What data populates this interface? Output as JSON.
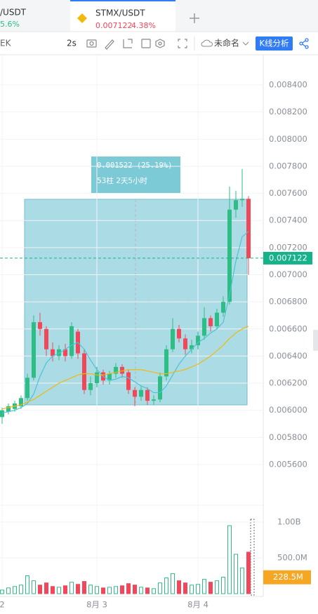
{
  "tabs": [
    {
      "pair": "/USDT",
      "change": "5.6%"
    },
    {
      "pair": "STMX/USDT",
      "change": "4.38%"
    }
  ],
  "toolbar": {
    "left": "EK",
    "interval": "2s",
    "layout_name": "未命名",
    "analysis": "K线分析"
  },
  "measure": {
    "change": "0.001522 (25.19%)",
    "span": "53柱 2天5小时"
  },
  "chart_data": {
    "type": "candlestick",
    "categories": [
      "2",
      null,
      null,
      null,
      null,
      null,
      null,
      null,
      null,
      null,
      null,
      null,
      null,
      null,
      null,
      "8月 3",
      null,
      null,
      null,
      null,
      null,
      null,
      null,
      null,
      null,
      null,
      null,
      null,
      null,
      null,
      null,
      "8月 4",
      null,
      null,
      null,
      null,
      null,
      null,
      null,
      null
    ],
    "open": [
      0.00595,
      0.00599,
      0.00601,
      0.00603,
      0.00609,
      0.00624,
      0.00665,
      0.0066,
      0.00645,
      0.0064,
      0.00645,
      0.0064,
      0.00658,
      0.00642,
      0.00615,
      0.0062,
      0.00628,
      0.00622,
      0.00627,
      0.00632,
      0.00628,
      0.00615,
      0.0061,
      0.00615,
      0.00607,
      0.00608,
      0.00625,
      0.00645,
      0.0066,
      0.00653,
      0.00645,
      0.00648,
      0.00655,
      0.00668,
      0.00662,
      0.00672,
      0.0068,
      0.00748,
      0.00755,
      0.00756
    ],
    "high": [
      0.00602,
      0.00605,
      0.00607,
      0.00611,
      0.00627,
      0.0067,
      0.00672,
      0.00662,
      0.0065,
      0.00648,
      0.00649,
      0.00665,
      0.0066,
      0.00645,
      0.00625,
      0.00632,
      0.0063,
      0.00629,
      0.00635,
      0.00634,
      0.0063,
      0.00617,
      0.00618,
      0.00617,
      0.00611,
      0.00628,
      0.00648,
      0.00668,
      0.00663,
      0.00656,
      0.00652,
      0.00658,
      0.00676,
      0.0067,
      0.00675,
      0.00684,
      0.00765,
      0.00762,
      0.00778,
      0.00758
    ],
    "low": [
      0.0059,
      0.00597,
      0.00599,
      0.00601,
      0.00607,
      0.00622,
      0.00655,
      0.0064,
      0.00636,
      0.00637,
      0.00636,
      0.00638,
      0.00638,
      0.00612,
      0.00611,
      0.00617,
      0.00619,
      0.00619,
      0.00624,
      0.00624,
      0.00612,
      0.00603,
      0.00607,
      0.00604,
      0.00604,
      0.00606,
      0.00622,
      0.00643,
      0.0065,
      0.00641,
      0.00642,
      0.00645,
      0.00652,
      0.00658,
      0.0066,
      0.00669,
      0.00678,
      0.00742,
      0.0075,
      0.007
    ],
    "close": [
      0.006,
      0.00603,
      0.00605,
      0.00609,
      0.00624,
      0.00665,
      0.0066,
      0.00645,
      0.0064,
      0.00645,
      0.0064,
      0.00662,
      0.00642,
      0.00615,
      0.0062,
      0.00628,
      0.00622,
      0.00627,
      0.00632,
      0.00627,
      0.00615,
      0.0061,
      0.00615,
      0.00607,
      0.00608,
      0.00625,
      0.00645,
      0.0066,
      0.00653,
      0.00645,
      0.00648,
      0.00655,
      0.00668,
      0.00662,
      0.00672,
      0.0068,
      0.00748,
      0.00755,
      0.00756,
      0.007122
    ],
    "volume": [
      50000000,
      80000000,
      100000000,
      120000000,
      250000000,
      180000000,
      120000000,
      150000000,
      100000000,
      90000000,
      110000000,
      160000000,
      130000000,
      170000000,
      120000000,
      100000000,
      80000000,
      90000000,
      100000000,
      110000000,
      140000000,
      120000000,
      90000000,
      80000000,
      70000000,
      150000000,
      220000000,
      280000000,
      180000000,
      150000000,
      120000000,
      130000000,
      200000000,
      160000000,
      180000000,
      230000000,
      950000000,
      550000000,
      360000000,
      580000000
    ],
    "series": [
      {
        "color": "#4cc3d6",
        "values": [
          0.00598,
          0.00599,
          0.006,
          0.00602,
          0.00605,
          0.00612,
          0.00625,
          0.00635,
          0.0064,
          0.00642,
          0.00645,
          0.00648,
          0.0065,
          0.00645,
          0.00637,
          0.0063,
          0.00625,
          0.00622,
          0.00623,
          0.00625,
          0.00624,
          0.00621,
          0.00618,
          0.00616,
          0.00613,
          0.00613,
          0.00618,
          0.00626,
          0.00634,
          0.0064,
          0.00645,
          0.0065,
          0.00653,
          0.00657,
          0.0066,
          0.00665,
          0.00685,
          0.0071,
          0.00728,
          0.00732
        ]
      },
      {
        "color": "#f0b90b",
        "values": [
          0.00601,
          0.00602,
          0.00603,
          0.00604,
          0.00606,
          0.00608,
          0.00611,
          0.00614,
          0.00617,
          0.0062,
          0.00622,
          0.00624,
          0.00626,
          0.00627,
          0.00627,
          0.00626,
          0.00626,
          0.00627,
          0.00628,
          0.00629,
          0.0063,
          0.0063,
          0.0063,
          0.00629,
          0.00628,
          0.00627,
          0.00627,
          0.00628,
          0.00629,
          0.0063,
          0.00632,
          0.00634,
          0.00637,
          0.0064,
          0.00644,
          0.00648,
          0.00653,
          0.00657,
          0.0066,
          0.00662
        ]
      }
    ],
    "up_color": "#2ebd85",
    "down_color": "#f0475b",
    "ylim": [
      0.0054,
      0.0086
    ],
    "yticks": [
      {
        "value": 0.0056,
        "label": "0.005600"
      },
      {
        "value": 0.0058,
        "label": "0.005800"
      },
      {
        "value": 0.006,
        "label": "0.006000"
      },
      {
        "value": 0.0062,
        "label": "0.006200"
      },
      {
        "value": 0.0064,
        "label": "0.006400"
      },
      {
        "value": 0.0066,
        "label": "0.006600"
      },
      {
        "value": 0.0068,
        "label": "0.006800"
      },
      {
        "value": 0.007,
        "label": "0.007000"
      },
      {
        "value": 0.0072,
        "label": "0.007200"
      },
      {
        "value": 0.0074,
        "label": "0.007400"
      },
      {
        "value": 0.0076,
        "label": "0.007600"
      },
      {
        "value": 0.0078,
        "label": "0.007800"
      },
      {
        "value": 0.008,
        "label": "0.008000"
      },
      {
        "value": 0.0082,
        "label": "0.008200"
      },
      {
        "value": 0.0084,
        "label": "0.008400"
      }
    ],
    "volume_ylim": [
      0,
      1100000000
    ],
    "volume_yticks": [
      {
        "value": 500000000,
        "label": "500.0M"
      },
      {
        "value": 1000000000,
        "label": "1.00B"
      }
    ],
    "volume_marker": {
      "value": 228500000,
      "label": "228.5M"
    },
    "grid": true
  }
}
